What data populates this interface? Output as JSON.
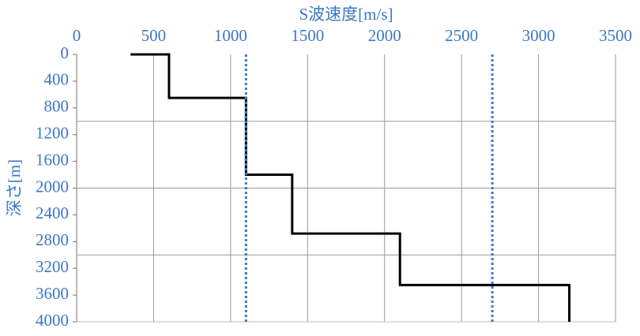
{
  "chart_data": {
    "type": "line",
    "xlabel": "S波速度[m/s]",
    "ylabel": "深さ[m]",
    "xlim": [
      0,
      3500
    ],
    "xticks": [
      0,
      500,
      1000,
      1500,
      2000,
      2500,
      3000,
      3500
    ],
    "ylim": [
      0,
      4000
    ],
    "yticks": [
      0,
      400,
      800,
      1200,
      1600,
      2000,
      2400,
      2800,
      3200,
      3600,
      4000
    ],
    "y_inverted": true,
    "x_axis_position": "top",
    "x_grid": true,
    "y_grid": [
      1000,
      2000,
      3000
    ],
    "series": [
      {
        "color": "#000000",
        "style": "solid",
        "x": [
          350,
          600,
          600,
          1100,
          1100,
          1400,
          1400,
          2100,
          2100,
          3200,
          3200
        ],
        "values": [
          0,
          0,
          650,
          650,
          1800,
          1800,
          2680,
          2680,
          3450,
          3450,
          4000
        ]
      },
      {
        "color": "#3a78d0",
        "style": "dashed",
        "x": [
          1100,
          1100
        ],
        "values": [
          0,
          4000
        ]
      },
      {
        "color": "#3a78d0",
        "style": "dashed",
        "x": [
          2700,
          2700
        ],
        "values": [
          0,
          4000
        ]
      }
    ]
  }
}
